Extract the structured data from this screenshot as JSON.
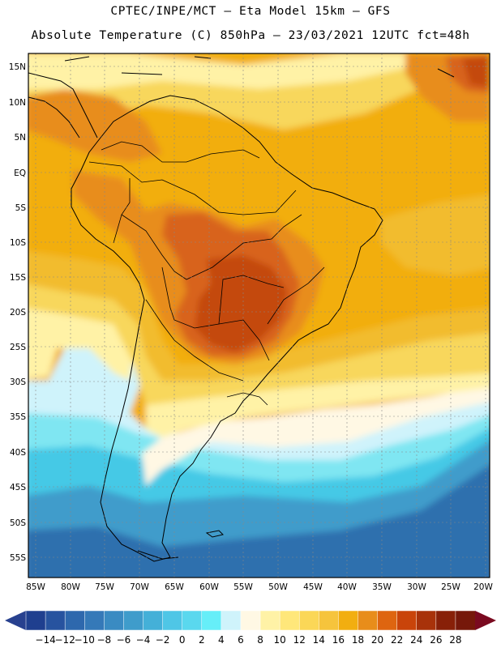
{
  "header": {
    "line1": "CPTEC/INPE/MCT –  Eta Model 15km – GFS",
    "line2": "Absolute Temperature (C) 850hPa – 23/03/2021 12UTC fct=48h"
  },
  "lat_labels": [
    "15N",
    "10N",
    "5N",
    "EQ",
    "5S",
    "10S",
    "15S",
    "20S",
    "25S",
    "30S",
    "35S",
    "40S",
    "45S",
    "50S",
    "55S"
  ],
  "lon_labels": [
    "85W",
    "80W",
    "75W",
    "70W",
    "65W",
    "60W",
    "55W",
    "50W",
    "45W",
    "40W",
    "35W",
    "30W",
    "25W",
    "20W"
  ],
  "colorbar": {
    "labels": [
      "-14",
      "-12",
      "-10",
      "-8",
      "-6",
      "-4",
      "-2",
      "0",
      "2",
      "4",
      "6",
      "8",
      "10",
      "12",
      "14",
      "16",
      "18",
      "20",
      "22",
      "24",
      "26",
      "28"
    ],
    "colors": [
      "#1f3f8f",
      "#27539f",
      "#2e68ad",
      "#3579b8",
      "#3a8bc2",
      "#3f9ccb",
      "#44b0d8",
      "#4fc6e6",
      "#5ad8ee",
      "#66eef8",
      "#cff3fb",
      "#fff8e4",
      "#fff2a6",
      "#ffe77a",
      "#fbd757",
      "#f6c43c",
      "#f2ae10",
      "#e88d1a",
      "#de6510",
      "#c9440a",
      "#a8320a",
      "#882008",
      "#76180a"
    ],
    "under_color": "#28418f",
    "over_color": "#7a0a20"
  },
  "field_colors": {
    "deep_blue": "#2f6fae",
    "blue": "#3f9ccb",
    "cyan": "#44c9e6",
    "light_cyan": "#7fe6f2",
    "pale_cyan": "#cff3fb",
    "cream": "#fff8e4",
    "pale_yellow": "#fff2a6",
    "yellow": "#f8d75c",
    "light_orange": "#f2bc2e",
    "orange": "#f2ae10",
    "dark_orange": "#e88d1a",
    "red_orange": "#d8641a",
    "brick": "#c44a10",
    "land_line": "#000000"
  }
}
